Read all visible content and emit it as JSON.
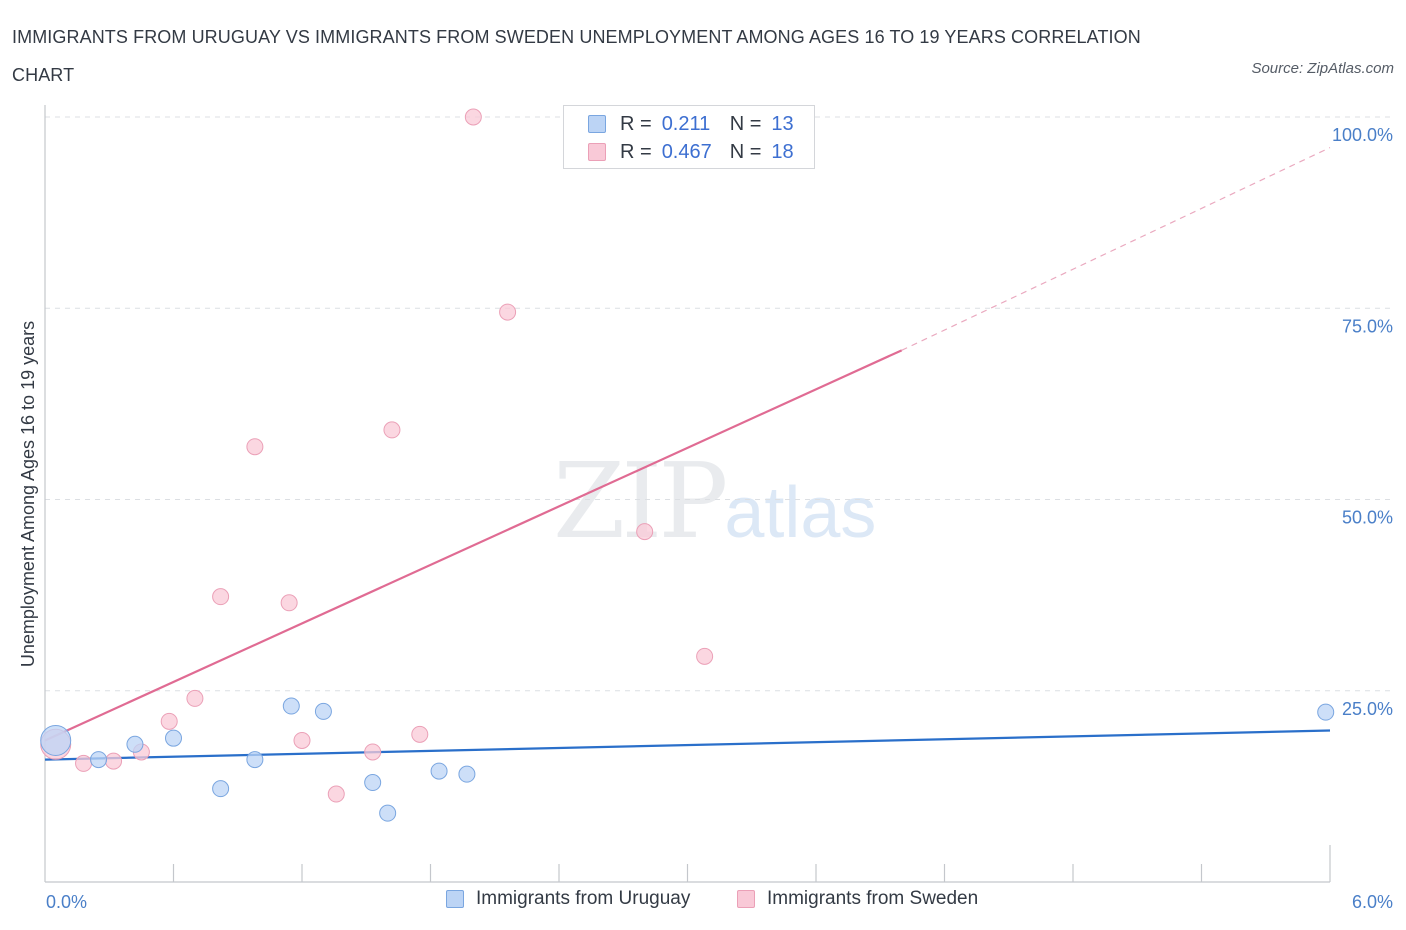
{
  "title": "IMMIGRANTS FROM URUGUAY VS IMMIGRANTS FROM SWEDEN UNEMPLOYMENT AMONG AGES 16 TO 19 YEARS CORRELATION CHART",
  "source": "Source: ZipAtlas.com",
  "watermark": {
    "zip": "ZIP",
    "atlas": "atlas"
  },
  "legend_stats": [
    {
      "r_label": "R =",
      "r_value": "0.211",
      "n_label": "N =",
      "n_value": "13"
    },
    {
      "r_label": "R =",
      "r_value": "0.467",
      "n_label": "N =",
      "n_value": "18"
    }
  ],
  "colors": {
    "uruguay_fill": "#bcd4f5",
    "uruguay_stroke": "#7aa6e0",
    "uruguay_line": "#2a6fca",
    "sweden_fill": "#f9c9d7",
    "sweden_stroke": "#eba0b7",
    "sweden_line": "#e06b93",
    "grid": "#dcdfe3",
    "axis": "#c4c7cc"
  },
  "chart_data": {
    "type": "scatter",
    "xlabel": "",
    "ylabel": "Unemployment Among Ages 16 to 19 years",
    "xlim": [
      0,
      6
    ],
    "ylim": [
      0,
      100
    ],
    "x_tick_labels": [
      "0.0%",
      "6.0%"
    ],
    "y_tick_labels": [
      "25.0%",
      "50.0%",
      "75.0%",
      "100.0%"
    ],
    "y_ticks": [
      25,
      50,
      75,
      100
    ],
    "grid": true,
    "legend": "bottom-center",
    "series": [
      {
        "name": "Immigrants from Uruguay",
        "points": [
          {
            "x": 0.05,
            "y": 18.5,
            "large": true
          },
          {
            "x": 0.25,
            "y": 16.0
          },
          {
            "x": 0.42,
            "y": 18.0
          },
          {
            "x": 0.6,
            "y": 18.8
          },
          {
            "x": 0.82,
            "y": 12.2
          },
          {
            "x": 0.98,
            "y": 16.0
          },
          {
            "x": 1.15,
            "y": 23.0
          },
          {
            "x": 1.3,
            "y": 22.3
          },
          {
            "x": 1.53,
            "y": 13.0
          },
          {
            "x": 1.6,
            "y": 9.0
          },
          {
            "x": 1.84,
            "y": 14.5
          },
          {
            "x": 1.97,
            "y": 14.1
          },
          {
            "x": 5.98,
            "y": 22.2
          }
        ],
        "trend": {
          "x0": 0,
          "y0": 16.0,
          "x1": 6.0,
          "y1": 19.8
        }
      },
      {
        "name": "Immigrants from Sweden",
        "points": [
          {
            "x": 0.05,
            "y": 18.0,
            "large": true
          },
          {
            "x": 0.18,
            "y": 15.5
          },
          {
            "x": 0.32,
            "y": 15.8
          },
          {
            "x": 0.45,
            "y": 17.0
          },
          {
            "x": 0.58,
            "y": 21.0
          },
          {
            "x": 0.7,
            "y": 24.0
          },
          {
            "x": 0.82,
            "y": 37.3
          },
          {
            "x": 0.98,
            "y": 56.9
          },
          {
            "x": 1.14,
            "y": 36.5
          },
          {
            "x": 1.2,
            "y": 18.5
          },
          {
            "x": 1.36,
            "y": 11.5
          },
          {
            "x": 1.53,
            "y": 17.0
          },
          {
            "x": 1.62,
            "y": 59.1
          },
          {
            "x": 1.75,
            "y": 19.3
          },
          {
            "x": 2.0,
            "y": 100.0
          },
          {
            "x": 2.16,
            "y": 74.5
          },
          {
            "x": 2.8,
            "y": 45.8
          },
          {
            "x": 3.08,
            "y": 29.5
          }
        ],
        "trend": {
          "x0": 0,
          "y0": 18.5,
          "x1": 4.0,
          "y1": 69.5,
          "dash_to_x": 6.0,
          "dash_to_y": 96.0
        }
      }
    ]
  }
}
